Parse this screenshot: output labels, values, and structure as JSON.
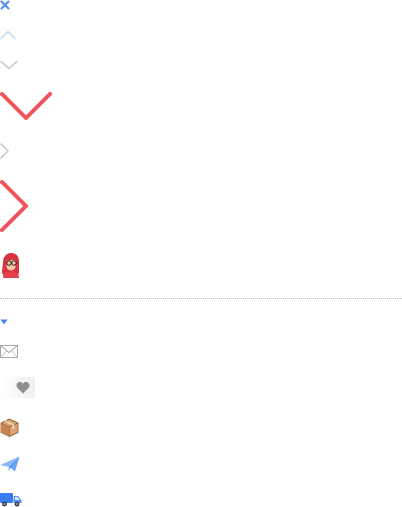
{
  "sprites": {
    "close_icon": "close-icon",
    "chevron_up_icon": "chevron-up-icon",
    "chevron_down_icon": "chevron-down-icon",
    "chevron_right_icon": "chevron-right-icon",
    "avatar_icon": "avatar-icon",
    "caret_down_icon": "caret-down-icon",
    "mail_icon": "mail-icon",
    "heart_icon": "heart-icon",
    "package_icon": "package-icon",
    "paper_plane_icon": "paper-plane-icon",
    "truck_icon": "truck-icon"
  },
  "colors": {
    "close_blue": "#5b8ff0",
    "chevron_light": "#c7d7ec",
    "chevron_gray": "#c8c8c8",
    "accent_red": "#f2545b",
    "divider": "#b8bcc2",
    "caret_blue": "#4a84e8",
    "mail_gray": "#a7a7a7",
    "heart_gray": "#8e8e8e",
    "box_brown": "#c99160",
    "plane_blue": "#3f86f0",
    "truck_blue": "#3c7ef0"
  }
}
